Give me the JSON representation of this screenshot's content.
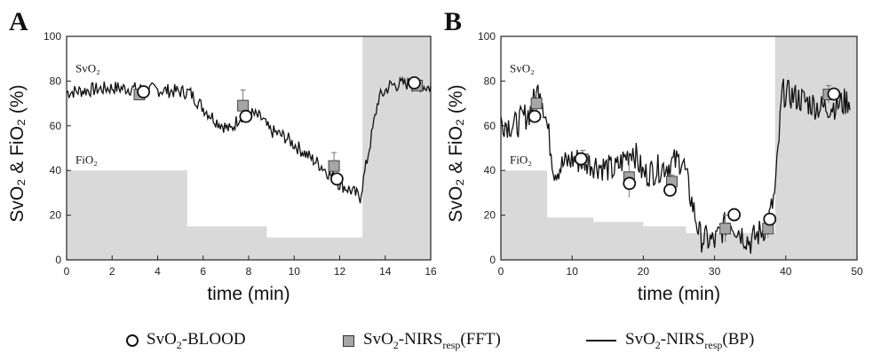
{
  "chart_data": [
    {
      "type": "line",
      "panel_label": "A",
      "xlabel": "time (min)",
      "ylabel": "SvO₂ & FiO₂ (%)",
      "xlim": [
        0,
        16
      ],
      "ylim": [
        0,
        100
      ],
      "xticks": [
        0,
        2,
        4,
        6,
        8,
        10,
        12,
        14,
        16
      ],
      "yticks": [
        0,
        20,
        40,
        60,
        80,
        100
      ],
      "annotations": [
        "SvO₂",
        "FiO₂"
      ],
      "fio2_steps": [
        [
          0,
          40
        ],
        [
          5.3,
          40
        ],
        [
          5.3,
          15
        ],
        [
          8.8,
          15
        ],
        [
          8.8,
          10
        ],
        [
          13.0,
          10
        ],
        [
          13.0,
          100
        ],
        [
          16,
          100
        ]
      ],
      "series": [
        {
          "name": "SvO₂-BLOOD",
          "marker": "circle",
          "x": [
            3.3,
            7.8,
            11.8,
            15.2
          ],
          "y": [
            76,
            65,
            37,
            80
          ]
        },
        {
          "name": "SvO₂-NIRS_resp(FFT)",
          "marker": "square",
          "x": [
            3.2,
            7.75,
            11.75,
            15.4
          ],
          "y": [
            74,
            69,
            42,
            78
          ],
          "err": [
            2,
            7,
            6,
            2
          ]
        },
        {
          "name": "SvO₂-NIRS_resp(BP)",
          "marker": "line",
          "keypoints": [
            [
              0,
              75
            ],
            [
              2,
              77
            ],
            [
              4,
              76
            ],
            [
              5.4,
              75
            ],
            [
              6,
              68
            ],
            [
              6.6,
              62
            ],
            [
              7.2,
              58
            ],
            [
              7.6,
              64
            ],
            [
              8.0,
              66
            ],
            [
              8.6,
              63
            ],
            [
              8.9,
              58
            ],
            [
              9.6,
              55
            ],
            [
              10.2,
              50
            ],
            [
              10.8,
              45
            ],
            [
              11.2,
              42
            ],
            [
              11.6,
              38
            ],
            [
              12.0,
              34
            ],
            [
              12.5,
              31
            ],
            [
              12.9,
              28
            ],
            [
              13.3,
              50
            ],
            [
              13.7,
              72
            ],
            [
              14.2,
              78
            ],
            [
              15.0,
              79
            ],
            [
              16,
              77
            ]
          ]
        }
      ]
    },
    {
      "type": "line",
      "panel_label": "B",
      "xlabel": "time (min)",
      "ylabel": "SvO₂ & FiO₂ (%)",
      "xlim": [
        0,
        50
      ],
      "ylim": [
        0,
        100
      ],
      "xticks": [
        0,
        10,
        20,
        30,
        40,
        50
      ],
      "yticks": [
        0,
        20,
        40,
        60,
        80,
        100
      ],
      "annotations": [
        "SvO₂",
        "FiO₂"
      ],
      "fio2_steps": [
        [
          0,
          40
        ],
        [
          6.5,
          40
        ],
        [
          6.5,
          19
        ],
        [
          13,
          19
        ],
        [
          13,
          17
        ],
        [
          20,
          17
        ],
        [
          20,
          15
        ],
        [
          26,
          15
        ],
        [
          26,
          12
        ],
        [
          38.5,
          12
        ],
        [
          38.5,
          100
        ],
        [
          50,
          100
        ]
      ],
      "series": [
        {
          "name": "SvO₂-BLOOD",
          "marker": "circle",
          "x": [
            4.5,
            11,
            17.8,
            23.5,
            32.5,
            37.5,
            46.5
          ],
          "y": [
            65,
            46,
            35,
            32,
            21,
            19,
            75
          ]
        },
        {
          "name": "SvO₂-NIRS_resp(FFT)",
          "marker": "square",
          "x": [
            5,
            11.5,
            18,
            24,
            31.5,
            37.5,
            46
          ],
          "y": [
            70,
            45,
            37,
            35,
            14,
            14,
            74
          ],
          "err": [
            5,
            4,
            9,
            3,
            6,
            4,
            4
          ]
        },
        {
          "name": "SvO₂-NIRS_resp(BP)",
          "marker": "line",
          "keypoints": [
            [
              0,
              62
            ],
            [
              2,
              60
            ],
            [
              4,
              66
            ],
            [
              5.5,
              78
            ],
            [
              6.5,
              60
            ],
            [
              7.5,
              40
            ],
            [
              10,
              45
            ],
            [
              13,
              43
            ],
            [
              16,
              40
            ],
            [
              18.5,
              50
            ],
            [
              20,
              38
            ],
            [
              23,
              42
            ],
            [
              25.5,
              45
            ],
            [
              26.5,
              30
            ],
            [
              28,
              10
            ],
            [
              30,
              8
            ],
            [
              32,
              18
            ],
            [
              35,
              8
            ],
            [
              37.5,
              16
            ],
            [
              38.5,
              30
            ],
            [
              39.5,
              75
            ],
            [
              42,
              72
            ],
            [
              45,
              68
            ],
            [
              48,
              70
            ],
            [
              49,
              72
            ]
          ]
        }
      ]
    }
  ],
  "legend": {
    "blood": {
      "label": "SvO",
      "sub": "2",
      "rest": "-BLOOD"
    },
    "fft": {
      "label": "SvO",
      "sub": "2",
      "rest": "-NIRS",
      "sub2": "resp",
      "tail": "(FFT)"
    },
    "bp": {
      "label": "SvO",
      "sub": "2",
      "rest": "-NIRS",
      "sub2": "resp",
      "tail": "(BP)"
    }
  },
  "colors": {
    "fio2_fill": "#d9d9d9",
    "square_fill": "#a6a6a6",
    "line": "#111111"
  }
}
